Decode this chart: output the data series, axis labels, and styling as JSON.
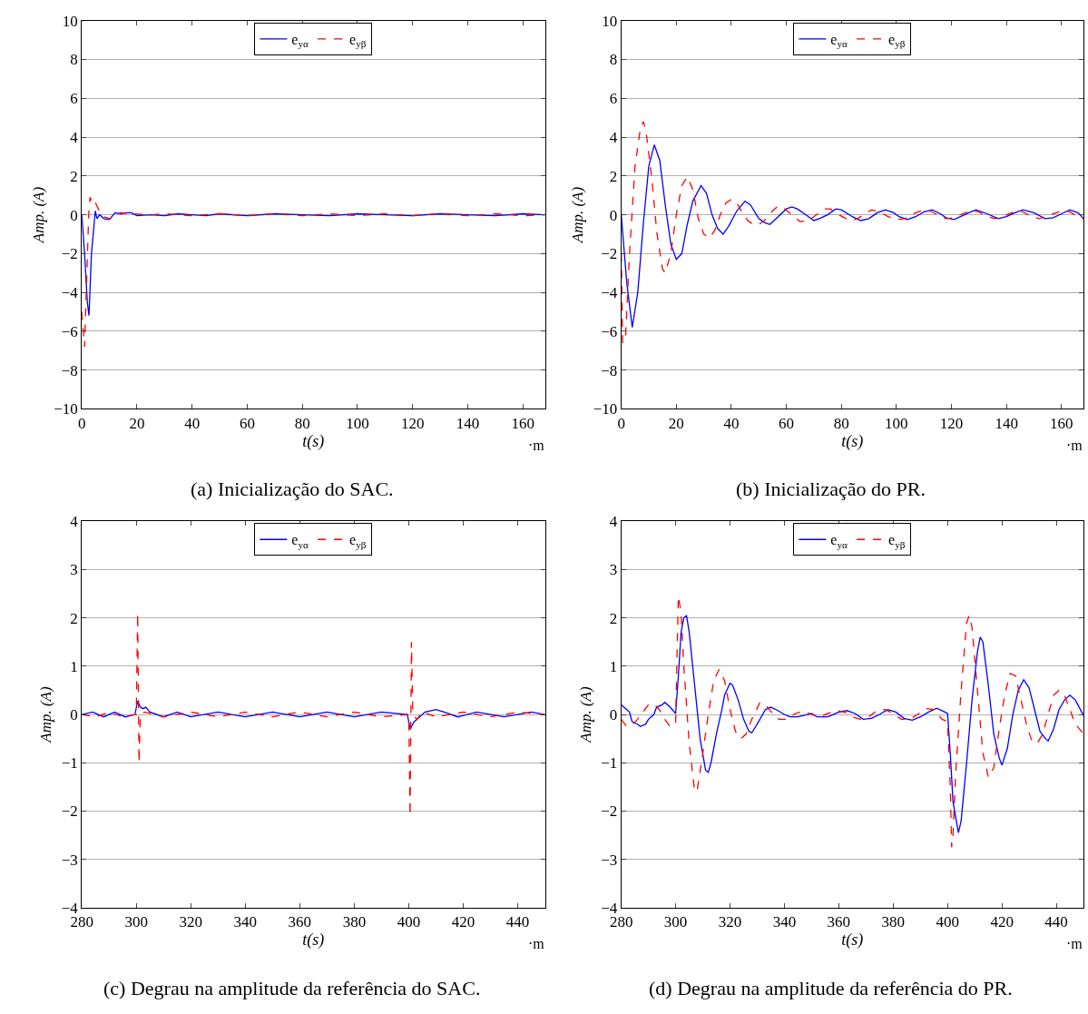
{
  "chart_data": [
    {
      "type": "line",
      "title": "(a) Inicialização do SAC.",
      "xlabel": "t(s)",
      "ylabel": "Amp. (A)",
      "annotations": [
        "·m"
      ],
      "xlim": [
        0,
        168
      ],
      "ylim": [
        -10,
        10
      ],
      "xticks": [
        0,
        20,
        40,
        60,
        80,
        100,
        120,
        140,
        160
      ],
      "yticks": [
        -10,
        -8,
        -6,
        -4,
        -2,
        0,
        2,
        4,
        6,
        8,
        10
      ],
      "grid": "y",
      "legend": "top",
      "series": [
        {
          "name": "e$_{yα}$",
          "color": "#0000ff",
          "line_style": "solid",
          "x": [
            0,
            1,
            2,
            2.6,
            3.5,
            4.9,
            5.5,
            6.5,
            8,
            10,
            12,
            14,
            16,
            18,
            20,
            25,
            30,
            35,
            40,
            45,
            50,
            55,
            60,
            70,
            80,
            90,
            100,
            110,
            120,
            130,
            140,
            150,
            160,
            168
          ],
          "values": [
            0,
            -2,
            -4.5,
            -5.2,
            -2,
            0.2,
            -0.2,
            0,
            -0.2,
            -0.25,
            0.1,
            0.05,
            0.1,
            0.1,
            -0.05,
            0,
            -0.05,
            0.05,
            0,
            -0.05,
            0.05,
            0,
            -0.05,
            0.05,
            0,
            -0.05,
            0.05,
            0,
            -0.05,
            0.05,
            0,
            -0.05,
            0.05,
            0
          ]
        },
        {
          "name": "e$_{yβ}$",
          "color": "#ff0000",
          "line_style": "dashed",
          "x": [
            0,
            1,
            2.5,
            3,
            4,
            5,
            6,
            8,
            10,
            12,
            14,
            18,
            25,
            30,
            40,
            50,
            60,
            70,
            80,
            90,
            100,
            110,
            120,
            130,
            140,
            150,
            160,
            168
          ],
          "values": [
            -5,
            -6.8,
            0,
            0.9,
            0.5,
            0.6,
            0.3,
            -0.1,
            -0.2,
            -0.1,
            0.1,
            0.05,
            0,
            0.05,
            -0.05,
            0.05,
            -0.05,
            0.05,
            -0.05,
            0.05,
            -0.05,
            0.05,
            -0.05,
            0.05,
            -0.05,
            0.05,
            -0.05,
            0
          ]
        }
      ]
    },
    {
      "type": "line",
      "title": "(b) Inicialização do PR.",
      "xlabel": "t(s)",
      "ylabel": "Amp. (A)",
      "annotations": [
        "·m"
      ],
      "xlim": [
        0,
        168
      ],
      "ylim": [
        -10,
        10
      ],
      "xticks": [
        0,
        20,
        40,
        60,
        80,
        100,
        120,
        140,
        160
      ],
      "yticks": [
        -10,
        -8,
        -6,
        -4,
        -2,
        0,
        2,
        4,
        6,
        8,
        10
      ],
      "grid": "y",
      "legend": "top",
      "series": [
        {
          "name": "e$_{yα}$",
          "color": "#0000ff",
          "line_style": "solid",
          "x": [
            0,
            2,
            4,
            6,
            8,
            10,
            12,
            14,
            16,
            18,
            20,
            22,
            24,
            26,
            29,
            31,
            33,
            35,
            37,
            39,
            42,
            45,
            47,
            50,
            52,
            54,
            57,
            60,
            62,
            64,
            67,
            70,
            72,
            75,
            78,
            80,
            84,
            87,
            90,
            93,
            96,
            99,
            101,
            104,
            107,
            110,
            113,
            116,
            118,
            121,
            124,
            127,
            129,
            133,
            137,
            140,
            143,
            146,
            150,
            154,
            157,
            160,
            163,
            166,
            168
          ],
          "values": [
            0,
            -3.5,
            -5.8,
            -4,
            -0.5,
            2.5,
            3.6,
            2.8,
            0.5,
            -1.5,
            -2.3,
            -2,
            -0.5,
            0.7,
            1.5,
            1.1,
            0,
            -0.7,
            -1,
            -0.6,
            0.2,
            0.7,
            0.5,
            -0.2,
            -0.4,
            -0.5,
            -0.1,
            0.3,
            0.4,
            0.3,
            0,
            -0.3,
            -0.2,
            0,
            0.3,
            0.25,
            -0.1,
            -0.3,
            -0.2,
            0.1,
            0.25,
            0.1,
            -0.1,
            -0.25,
            -0.1,
            0.15,
            0.25,
            0.05,
            -0.15,
            -0.25,
            -0.05,
            0.15,
            0.25,
            0.05,
            -0.2,
            -0.1,
            0.1,
            0.25,
            0.1,
            -0.2,
            -0.15,
            0.05,
            0.25,
            0.1,
            -0.2
          ]
        },
        {
          "name": "e$_{yβ}$",
          "color": "#ff0000",
          "line_style": "dashed",
          "x": [
            0,
            0.5,
            1.5,
            3,
            5,
            7,
            8,
            9,
            11,
            13,
            15,
            16,
            18,
            20,
            22,
            24,
            26,
            28,
            30,
            32,
            34,
            36,
            38,
            40,
            42,
            44,
            46,
            48,
            50,
            52,
            55,
            57,
            59,
            62,
            65,
            68,
            71,
            74,
            76,
            79,
            83,
            86,
            89,
            91,
            94,
            97,
            100,
            103,
            106,
            109,
            112,
            115,
            118,
            121,
            124,
            127,
            130,
            133,
            136,
            140,
            143,
            146,
            149,
            152,
            156,
            160,
            163,
            166,
            168
          ],
          "values": [
            -2,
            -6.6,
            -6.5,
            -2,
            2.5,
            4.5,
            4.8,
            4.3,
            2,
            -1,
            -2.8,
            -3,
            -2,
            0,
            1.5,
            1.95,
            1.3,
            -0.2,
            -1,
            -1.2,
            -0.8,
            0,
            0.6,
            0.8,
            0.6,
            0.1,
            -0.3,
            -0.5,
            -0.5,
            -0.3,
            0.2,
            0.45,
            0.35,
            0,
            -0.35,
            -0.3,
            0,
            0.3,
            0.3,
            0,
            -0.3,
            -0.2,
            0.1,
            0.25,
            0.15,
            -0.1,
            -0.25,
            -0.2,
            0.05,
            0.2,
            0.2,
            0,
            -0.2,
            -0.15,
            0.05,
            0.2,
            0.15,
            -0.1,
            -0.2,
            0,
            0.15,
            0.15,
            -0.1,
            -0.2,
            0,
            0.2,
            0.15,
            -0.1,
            -0.2
          ]
        }
      ]
    },
    {
      "type": "line",
      "title": "(c) Degrau na amplitude da referência do SAC.",
      "xlabel": "t(s)",
      "ylabel": "Amp. (A)",
      "annotations": [
        "·m"
      ],
      "xlim": [
        280,
        450
      ],
      "ylim": [
        -4,
        4
      ],
      "xticks": [
        280,
        300,
        320,
        340,
        360,
        380,
        400,
        420,
        440
      ],
      "yticks": [
        -4,
        -3,
        -2,
        -1,
        0,
        1,
        2,
        3,
        4
      ],
      "grid": "y",
      "legend": "top",
      "series": [
        {
          "name": "e$_{yα}$",
          "color": "#0000ff",
          "line_style": "solid",
          "x": [
            280,
            284,
            288,
            292,
            296,
            299.5,
            300.5,
            301.5,
            302.5,
            303.5,
            305,
            310,
            315,
            320,
            330,
            340,
            350,
            360,
            370,
            380,
            390,
            399.5,
            400.5,
            402,
            404,
            406,
            410,
            413,
            418,
            425,
            435,
            445,
            450
          ],
          "values": [
            0,
            0.05,
            -0.05,
            0.05,
            -0.05,
            0,
            0.28,
            0.15,
            0.12,
            0.15,
            0.05,
            -0.05,
            0.05,
            -0.05,
            0.05,
            -0.05,
            0.05,
            -0.05,
            0.05,
            -0.05,
            0.05,
            0,
            -0.3,
            -0.15,
            -0.05,
            0.05,
            0.1,
            0.05,
            -0.05,
            0.05,
            -0.05,
            0.05,
            0
          ]
        },
        {
          "name": "e$_{yβ}$",
          "color": "#ff0000",
          "line_style": "dashed",
          "x": [
            280,
            285,
            290,
            295,
            300,
            300.5,
            301,
            301.5,
            303,
            310,
            320,
            330,
            340,
            350,
            360,
            370,
            380,
            390,
            400,
            400.5,
            401,
            401.5,
            403,
            405,
            410,
            420,
            430,
            440,
            450
          ],
          "values": [
            0,
            -0.05,
            0.05,
            -0.05,
            0,
            2.1,
            -1,
            0,
            0.05,
            -0.05,
            0.05,
            -0.05,
            0.05,
            -0.05,
            0.05,
            -0.05,
            0.05,
            -0.05,
            0,
            -2.1,
            1.5,
            0,
            -0.1,
            0.05,
            -0.05,
            0.05,
            -0.05,
            0.05,
            0
          ]
        }
      ]
    },
    {
      "type": "line",
      "title": "(d) Degrau na amplitude da referência do PR.",
      "xlabel": "t(s)",
      "ylabel": "Amp. (A)",
      "annotations": [
        "·m"
      ],
      "xlim": [
        280,
        450
      ],
      "ylim": [
        -4,
        4
      ],
      "xticks": [
        280,
        300,
        320,
        340,
        360,
        380,
        400,
        420,
        440
      ],
      "yticks": [
        -4,
        -3,
        -2,
        -1,
        0,
        1,
        2,
        3,
        4
      ],
      "grid": "y",
      "legend": "top",
      "series": [
        {
          "name": "e$_{yα}$",
          "color": "#0000ff",
          "line_style": "solid",
          "x": [
            280,
            281,
            283,
            284,
            286,
            287,
            289,
            290,
            292,
            293,
            295,
            296,
            298,
            300,
            301,
            302,
            303,
            304,
            305,
            307,
            309,
            311,
            312,
            313,
            315,
            317,
            318,
            320,
            321,
            323,
            325,
            327,
            328,
            330,
            333,
            335,
            337,
            340,
            342,
            345,
            350,
            352,
            356,
            360,
            363,
            366,
            369,
            372,
            375,
            378,
            381,
            384,
            387,
            390,
            393,
            396,
            399,
            400,
            401,
            402,
            404,
            405,
            407,
            409,
            411,
            412,
            413,
            415,
            417,
            419,
            420,
            422,
            424,
            426,
            428,
            430,
            432,
            434,
            436,
            437,
            439,
            441,
            443,
            445,
            447,
            450
          ],
          "values": [
            0.2,
            0.15,
            0.05,
            -0.15,
            -0.2,
            -0.25,
            -0.2,
            -0.1,
            0,
            0.15,
            0.2,
            0.25,
            0.15,
            0.02,
            0.8,
            1.7,
            2,
            2.05,
            1.7,
            0.6,
            -0.5,
            -1.15,
            -1.2,
            -1,
            -0.4,
            0.1,
            0.4,
            0.65,
            0.6,
            0.3,
            -0.1,
            -0.35,
            -0.38,
            -0.2,
            0.1,
            0.15,
            0.1,
            0,
            -0.05,
            -0.05,
            0.02,
            -0.05,
            -0.05,
            0.05,
            0.08,
            0.02,
            -0.1,
            -0.08,
            0,
            0.1,
            0.05,
            -0.08,
            -0.12,
            -0.05,
            0.05,
            0.13,
            0.05,
            0.02,
            -0.8,
            -1.8,
            -2.45,
            -2.2,
            -1,
            0.3,
            1.3,
            1.6,
            1.5,
            0.6,
            -0.4,
            -0.9,
            -1.05,
            -0.7,
            0,
            0.5,
            0.72,
            0.55,
            0.1,
            -0.35,
            -0.5,
            -0.55,
            -0.3,
            0.1,
            0.3,
            0.4,
            0.3,
            -0.02
          ]
        },
        {
          "name": "e$_{yβ}$",
          "color": "#ff0000",
          "line_style": "dashed",
          "x": [
            280,
            282,
            284,
            286,
            288,
            290,
            292,
            294,
            296,
            298,
            300,
            300.5,
            301,
            302,
            303,
            305,
            307,
            308,
            310,
            312,
            314,
            316,
            318,
            320,
            322,
            324,
            326,
            328,
            331,
            333,
            336,
            338,
            341,
            344,
            347,
            350,
            353,
            356,
            359,
            362,
            365,
            368,
            371,
            374,
            377,
            380,
            383,
            386,
            389,
            392,
            395,
            398,
            400,
            401,
            401.5,
            402,
            403,
            405,
            407,
            408,
            409,
            411,
            413,
            415,
            417,
            419,
            421,
            423,
            425,
            427,
            429,
            431,
            433,
            435,
            437,
            439,
            441,
            443,
            445,
            447,
            450
          ],
          "values": [
            -0.1,
            -0.25,
            -0.22,
            -0.1,
            0.05,
            0.2,
            0.22,
            0.1,
            -0.1,
            -0.25,
            -0.2,
            1.2,
            2.45,
            2.1,
            1,
            -0.6,
            -1.6,
            -1.55,
            -0.8,
            0,
            0.7,
            0.93,
            0.7,
            0.1,
            -0.35,
            -0.5,
            -0.4,
            -0.1,
            0.25,
            0.2,
            0,
            -0.1,
            -0.1,
            0.02,
            0.07,
            0,
            -0.05,
            0.02,
            0.08,
            0.05,
            -0.05,
            -0.1,
            -0.05,
            0.08,
            0.1,
            0.02,
            -0.1,
            -0.1,
            0,
            0.12,
            0.1,
            -0.1,
            -0.15,
            -1.5,
            -2.75,
            -2.5,
            -1.2,
            0.5,
            1.9,
            2.05,
            1.8,
            0.5,
            -0.8,
            -1.3,
            -1.1,
            -0.3,
            0.4,
            0.85,
            0.8,
            0.3,
            -0.2,
            -0.55,
            -0.6,
            -0.4,
            0,
            0.4,
            0.5,
            0.4,
            0.1,
            -0.2,
            -0.4
          ]
        }
      ]
    }
  ]
}
